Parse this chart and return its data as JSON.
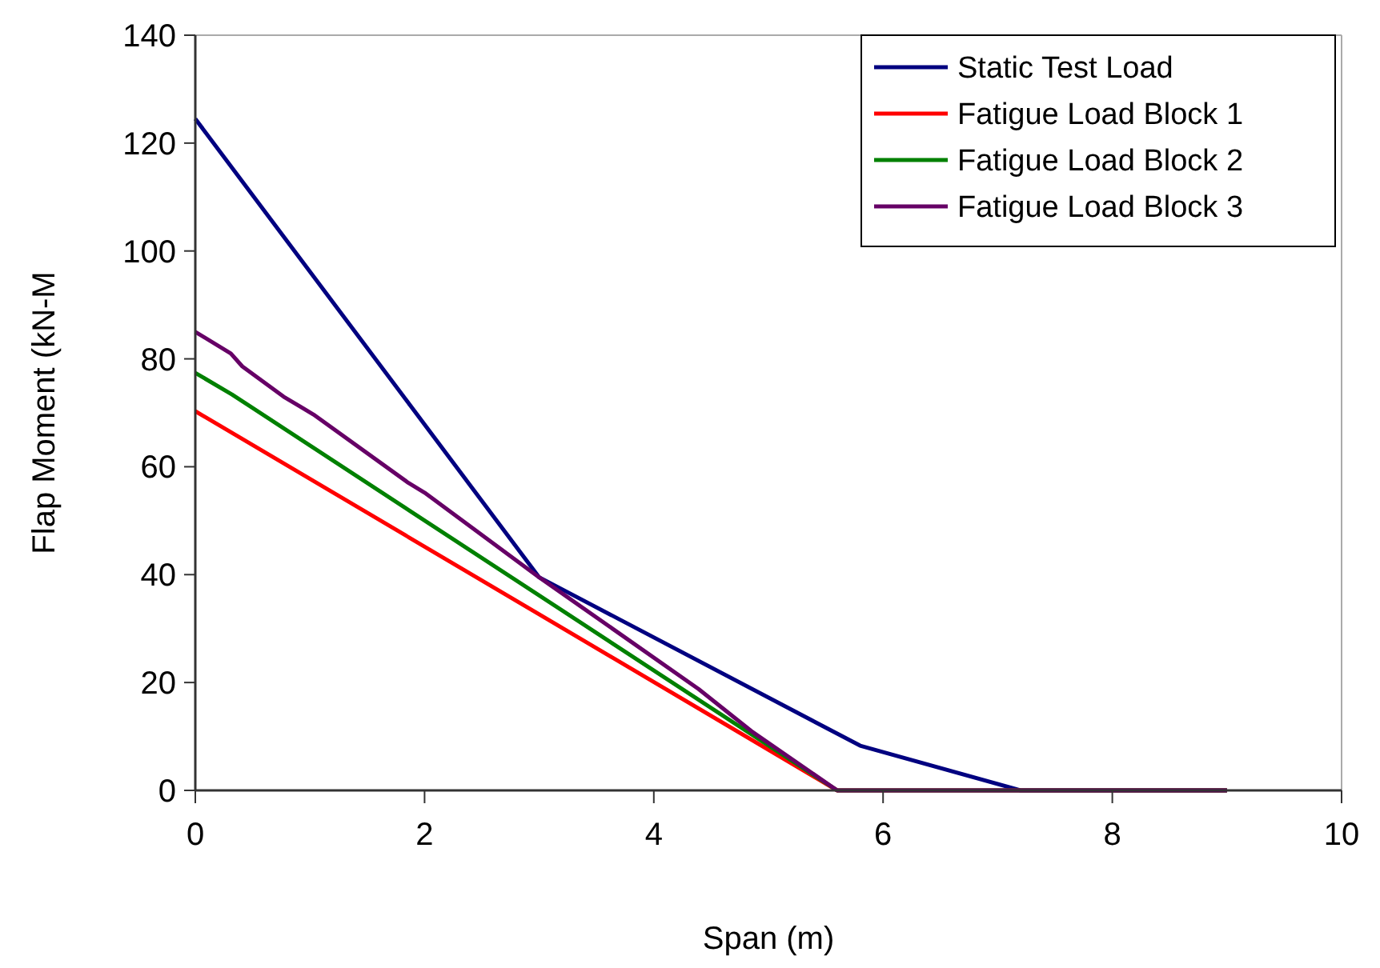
{
  "chart_data": {
    "type": "line",
    "xlabel": "Span (m)",
    "ylabel": "Flap Moment (kN-M",
    "xlim": [
      0,
      10
    ],
    "xticks": [
      0,
      2,
      4,
      6,
      8,
      10
    ],
    "ylim": [
      0,
      140
    ],
    "yticks": [
      0,
      20,
      40,
      60,
      80,
      100,
      120,
      140
    ],
    "grid": false,
    "legend": "top right",
    "marker": "none",
    "line_style": "solid",
    "series": [
      {
        "name": "Static Test Load",
        "color": "#000080",
        "x": [
          0,
          3,
          5.8,
          7.2,
          9
        ],
        "values": [
          124.5,
          39.5,
          8.3,
          0,
          0
        ]
      },
      {
        "name": "Fatigue Load Block 1",
        "color": "#ff0000",
        "x": [
          0,
          5.6,
          9
        ],
        "values": [
          70.3,
          0,
          0
        ]
      },
      {
        "name": "Fatigue Load Block 2",
        "color": "#008000",
        "x": [
          0,
          0.32,
          5.6,
          9
        ],
        "values": [
          77.4,
          73.4,
          0,
          0
        ]
      },
      {
        "name": "Fatigue Load Block 3",
        "color": "#660066",
        "x": [
          0,
          0.31,
          0.41,
          0.77,
          1.03,
          1.86,
          2,
          3,
          4.39,
          4.85,
          5.6,
          9
        ],
        "values": [
          85,
          81,
          78.6,
          73,
          69.7,
          57,
          55.2,
          39.5,
          18.8,
          11,
          0,
          0
        ]
      }
    ]
  }
}
